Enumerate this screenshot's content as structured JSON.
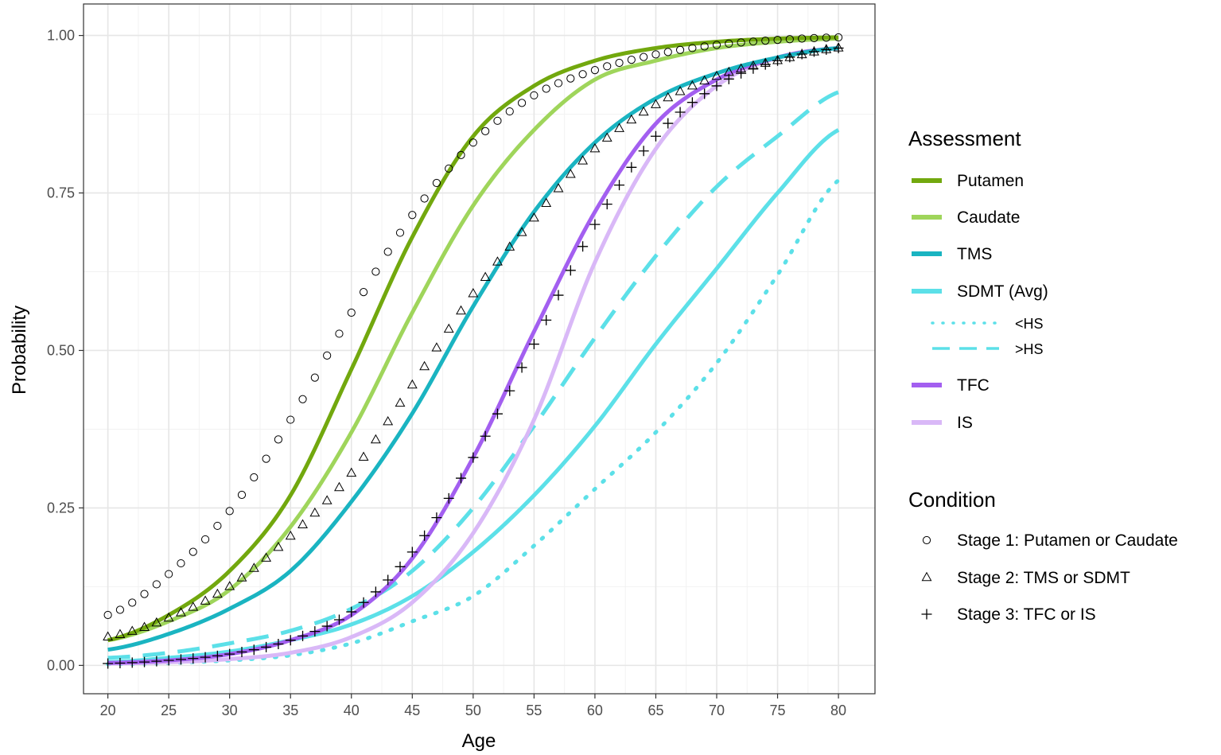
{
  "chart_data": {
    "type": "line",
    "xlabel": "Age",
    "ylabel": "Probability",
    "xlim": [
      18,
      83
    ],
    "ylim": [
      -0.045,
      1.05
    ],
    "x_ticks": [
      20,
      25,
      30,
      35,
      40,
      45,
      50,
      55,
      60,
      65,
      70,
      75,
      80
    ],
    "y_ticks": [
      0.0,
      0.25,
      0.5,
      0.75,
      1.0
    ],
    "y_tick_labels": [
      "0.00",
      "0.25",
      "0.50",
      "0.75",
      "1.00"
    ],
    "grid": true,
    "legend_placement": "right",
    "legend_assessment_title": "Assessment",
    "legend_condition_title": "Condition",
    "series": [
      {
        "name": "Putamen",
        "style": "solid",
        "color": "#72a80e",
        "x": [
          20,
          25,
          30,
          35,
          40,
          45,
          50,
          55,
          60,
          65,
          70,
          75,
          80
        ],
        "values": [
          0.04,
          0.08,
          0.15,
          0.27,
          0.47,
          0.68,
          0.84,
          0.92,
          0.96,
          0.98,
          0.99,
          0.995,
          0.997
        ]
      },
      {
        "name": "Caudate",
        "style": "solid",
        "color": "#9fd55b",
        "x": [
          20,
          25,
          30,
          35,
          40,
          45,
          50,
          55,
          60,
          65,
          70,
          75,
          80
        ],
        "values": [
          0.04,
          0.07,
          0.12,
          0.22,
          0.37,
          0.56,
          0.73,
          0.85,
          0.93,
          0.96,
          0.98,
          0.99,
          0.995
        ]
      },
      {
        "name": "TMS",
        "style": "solid",
        "color": "#1ab4c1",
        "x": [
          20,
          25,
          30,
          35,
          40,
          45,
          50,
          55,
          60,
          65,
          70,
          75,
          80
        ],
        "values": [
          0.025,
          0.05,
          0.09,
          0.15,
          0.26,
          0.4,
          0.57,
          0.72,
          0.83,
          0.9,
          0.94,
          0.965,
          0.98
        ]
      },
      {
        "name": "SDMT (Avg)",
        "style": "solid",
        "color": "#5ce0e8",
        "x": [
          20,
          25,
          30,
          35,
          40,
          45,
          50,
          55,
          60,
          65,
          70,
          75,
          80
        ],
        "values": [
          0.005,
          0.012,
          0.022,
          0.04,
          0.065,
          0.11,
          0.18,
          0.27,
          0.38,
          0.51,
          0.63,
          0.75,
          0.85
        ]
      },
      {
        "name": "<HS",
        "style": "dotted",
        "color": "#5ce0e8",
        "x": [
          20,
          25,
          30,
          35,
          40,
          45,
          50,
          55,
          60,
          65,
          70,
          75,
          80
        ],
        "values": [
          0.002,
          0.004,
          0.008,
          0.016,
          0.035,
          0.07,
          0.11,
          0.19,
          0.28,
          0.37,
          0.48,
          0.62,
          0.77
        ]
      },
      {
        "name": ">HS",
        "style": "dashed",
        "color": "#5ce0e8",
        "x": [
          20,
          25,
          30,
          35,
          40,
          45,
          50,
          55,
          60,
          65,
          70,
          75,
          80
        ],
        "values": [
          0.012,
          0.02,
          0.035,
          0.055,
          0.09,
          0.15,
          0.25,
          0.38,
          0.52,
          0.65,
          0.76,
          0.84,
          0.91
        ]
      },
      {
        "name": "TFC",
        "style": "solid",
        "color": "#a35ff0",
        "x": [
          20,
          25,
          30,
          35,
          40,
          45,
          50,
          55,
          60,
          65,
          70,
          75,
          80
        ],
        "values": [
          0.004,
          0.008,
          0.018,
          0.04,
          0.08,
          0.17,
          0.33,
          0.53,
          0.72,
          0.86,
          0.93,
          0.965,
          0.98
        ]
      },
      {
        "name": "IS",
        "style": "solid",
        "color": "#d9b8f7",
        "x": [
          20,
          25,
          30,
          35,
          40,
          45,
          50,
          55,
          60,
          65,
          70,
          75,
          80
        ],
        "values": [
          0.003,
          0.005,
          0.01,
          0.02,
          0.045,
          0.1,
          0.21,
          0.39,
          0.64,
          0.82,
          0.92,
          0.965,
          0.98
        ]
      },
      {
        "name": "Stage 1: Putamen or Caudate",
        "style": "points",
        "marker": "circle",
        "color": "#000000",
        "x": [
          20,
          25,
          30,
          35,
          40,
          45,
          50,
          55,
          60,
          65,
          70,
          75,
          80
        ],
        "values": [
          0.08,
          0.145,
          0.245,
          0.39,
          0.56,
          0.715,
          0.83,
          0.905,
          0.945,
          0.97,
          0.985,
          0.993,
          0.997
        ]
      },
      {
        "name": "Stage 2: TMS or SDMT",
        "style": "points",
        "marker": "triangle",
        "color": "#000000",
        "x": [
          20,
          25,
          30,
          35,
          40,
          45,
          50,
          55,
          60,
          65,
          70,
          75,
          80
        ],
        "values": [
          0.045,
          0.075,
          0.125,
          0.205,
          0.305,
          0.445,
          0.59,
          0.71,
          0.82,
          0.89,
          0.935,
          0.96,
          0.98
        ]
      },
      {
        "name": "Stage 3: TFC or IS",
        "style": "points",
        "marker": "plus",
        "color": "#000000",
        "x": [
          20,
          25,
          30,
          35,
          40,
          45,
          50,
          55,
          60,
          65,
          70,
          75,
          80
        ],
        "values": [
          0.003,
          0.008,
          0.018,
          0.04,
          0.085,
          0.18,
          0.33,
          0.51,
          0.7,
          0.84,
          0.92,
          0.96,
          0.98
        ]
      }
    ]
  }
}
